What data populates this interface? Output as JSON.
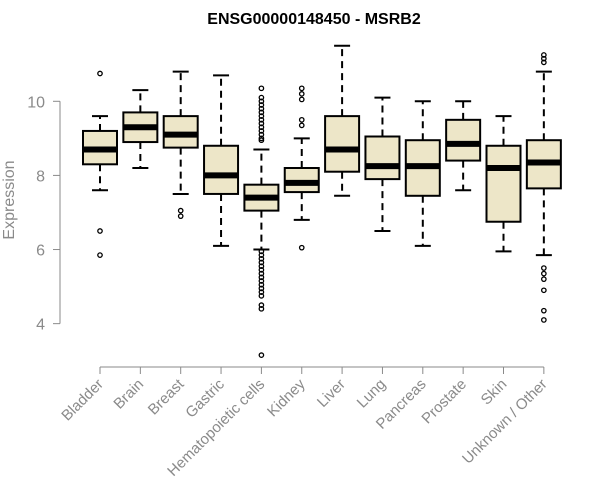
{
  "chart_data": {
    "type": "box",
    "title": "ENSG00000148450 - MSRB2",
    "xlabel": "",
    "ylabel": "Expression",
    "ylim": [
      3.1,
      11.6
    ],
    "yticks": [
      4,
      6,
      8,
      10
    ],
    "box_fill": "#ede6c8",
    "categories": [
      "Bladder",
      "Brain",
      "Breast",
      "Gastric",
      "Hematopoietic cells",
      "Kidney",
      "Liver",
      "Lung",
      "Pancreas",
      "Prostate",
      "Skin",
      "Unknown / Other"
    ],
    "boxes": [
      {
        "category": "Bladder",
        "whisker_low": 7.6,
        "q1": 8.3,
        "median": 8.7,
        "q3": 9.2,
        "whisker_high": 9.6,
        "outliers": [
          10.75,
          6.5,
          5.85
        ]
      },
      {
        "category": "Brain",
        "whisker_low": 8.2,
        "q1": 8.9,
        "median": 9.3,
        "q3": 9.7,
        "whisker_high": 10.3,
        "outliers": []
      },
      {
        "category": "Breast",
        "whisker_low": 7.5,
        "q1": 8.75,
        "median": 9.1,
        "q3": 9.6,
        "whisker_high": 10.8,
        "outliers": [
          7.05,
          6.9
        ]
      },
      {
        "category": "Gastric",
        "whisker_low": 6.1,
        "q1": 7.5,
        "median": 8.0,
        "q3": 8.8,
        "whisker_high": 10.7,
        "outliers": []
      },
      {
        "category": "Hematopoietic cells",
        "whisker_low": 6.0,
        "q1": 7.05,
        "median": 7.4,
        "q3": 7.75,
        "whisker_high": 8.7,
        "outliers": [
          10.35,
          10.1,
          10.0,
          9.9,
          9.8,
          9.7,
          9.6,
          9.5,
          9.4,
          9.3,
          9.2,
          9.1,
          9.0,
          8.95,
          5.95,
          5.85,
          5.75,
          5.65,
          5.55,
          5.45,
          5.35,
          5.25,
          5.15,
          5.05,
          4.95,
          4.85,
          4.75,
          4.5,
          4.4,
          3.15
        ]
      },
      {
        "category": "Kidney",
        "whisker_low": 6.8,
        "q1": 7.55,
        "median": 7.8,
        "q3": 8.2,
        "whisker_high": 9.0,
        "outliers": [
          10.35,
          10.2,
          10.05,
          9.5,
          9.35,
          6.05
        ]
      },
      {
        "category": "Liver",
        "whisker_low": 7.45,
        "q1": 8.1,
        "median": 8.7,
        "q3": 9.6,
        "whisker_high": 11.5,
        "outliers": []
      },
      {
        "category": "Lung",
        "whisker_low": 6.5,
        "q1": 7.9,
        "median": 8.25,
        "q3": 9.05,
        "whisker_high": 10.1,
        "outliers": []
      },
      {
        "category": "Pancreas",
        "whisker_low": 6.1,
        "q1": 7.45,
        "median": 8.25,
        "q3": 8.95,
        "whisker_high": 10.0,
        "outliers": []
      },
      {
        "category": "Prostate",
        "whisker_low": 7.6,
        "q1": 8.4,
        "median": 8.85,
        "q3": 9.5,
        "whisker_high": 10.0,
        "outliers": []
      },
      {
        "category": "Skin",
        "whisker_low": 5.95,
        "q1": 6.75,
        "median": 8.2,
        "q3": 8.8,
        "whisker_high": 9.6,
        "outliers": []
      },
      {
        "category": "Unknown / Other",
        "whisker_low": 5.85,
        "q1": 7.65,
        "median": 8.35,
        "q3": 8.95,
        "whisker_high": 10.8,
        "outliers": [
          11.25,
          11.15,
          11.05,
          5.5,
          5.35,
          5.2,
          4.9,
          4.35,
          4.1
        ]
      }
    ]
  }
}
